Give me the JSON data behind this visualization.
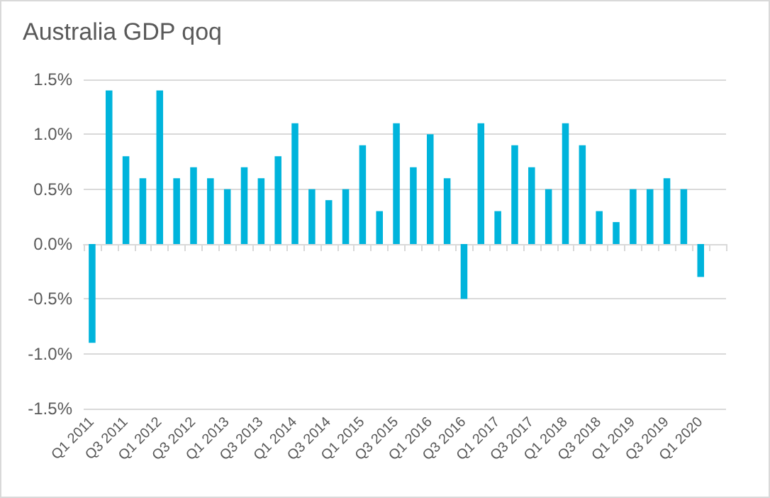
{
  "chart_data": {
    "type": "bar",
    "title": "Australia GDP qoq",
    "categories": [
      "Q1 2011",
      null,
      "Q3 2011",
      null,
      "Q1 2012",
      null,
      "Q3 2012",
      null,
      "Q1 2013",
      null,
      "Q3 2013",
      null,
      "Q1 2014",
      null,
      "Q3 2014",
      null,
      "Q1 2015",
      null,
      "Q3 2015",
      null,
      "Q1 2016",
      null,
      "Q3 2016",
      null,
      "Q1 2017",
      null,
      "Q3 2017",
      null,
      "Q1 2018",
      null,
      "Q3 2018",
      null,
      "Q1 2019",
      null,
      "Q3 2019",
      null,
      "Q1 2020",
      null
    ],
    "values": [
      -0.9,
      1.4,
      0.8,
      0.6,
      1.4,
      0.6,
      0.7,
      0.6,
      0.5,
      0.7,
      0.6,
      0.8,
      1.1,
      0.5,
      0.4,
      0.5,
      0.9,
      0.3,
      1.1,
      0.7,
      1.0,
      0.6,
      -0.5,
      1.1,
      0.3,
      0.9,
      0.7,
      0.5,
      1.1,
      0.9,
      0.3,
      0.2,
      0.5,
      0.5,
      0.6,
      0.5,
      -0.3,
      null
    ],
    "color": "#00b4dc",
    "ylim": [
      -1.5,
      1.5
    ],
    "yticks": [
      {
        "value": -1.5,
        "label": "-1.5%"
      },
      {
        "value": -1.0,
        "label": "-1.0%"
      },
      {
        "value": -0.5,
        "label": "-0.5%"
      },
      {
        "value": 0,
        "label": "0.0%"
      },
      {
        "value": 0.5,
        "label": "0.5%"
      },
      {
        "value": 1.0,
        "label": "1.0%"
      },
      {
        "value": 1.5,
        "label": "1.5%"
      }
    ],
    "grid": "y"
  }
}
